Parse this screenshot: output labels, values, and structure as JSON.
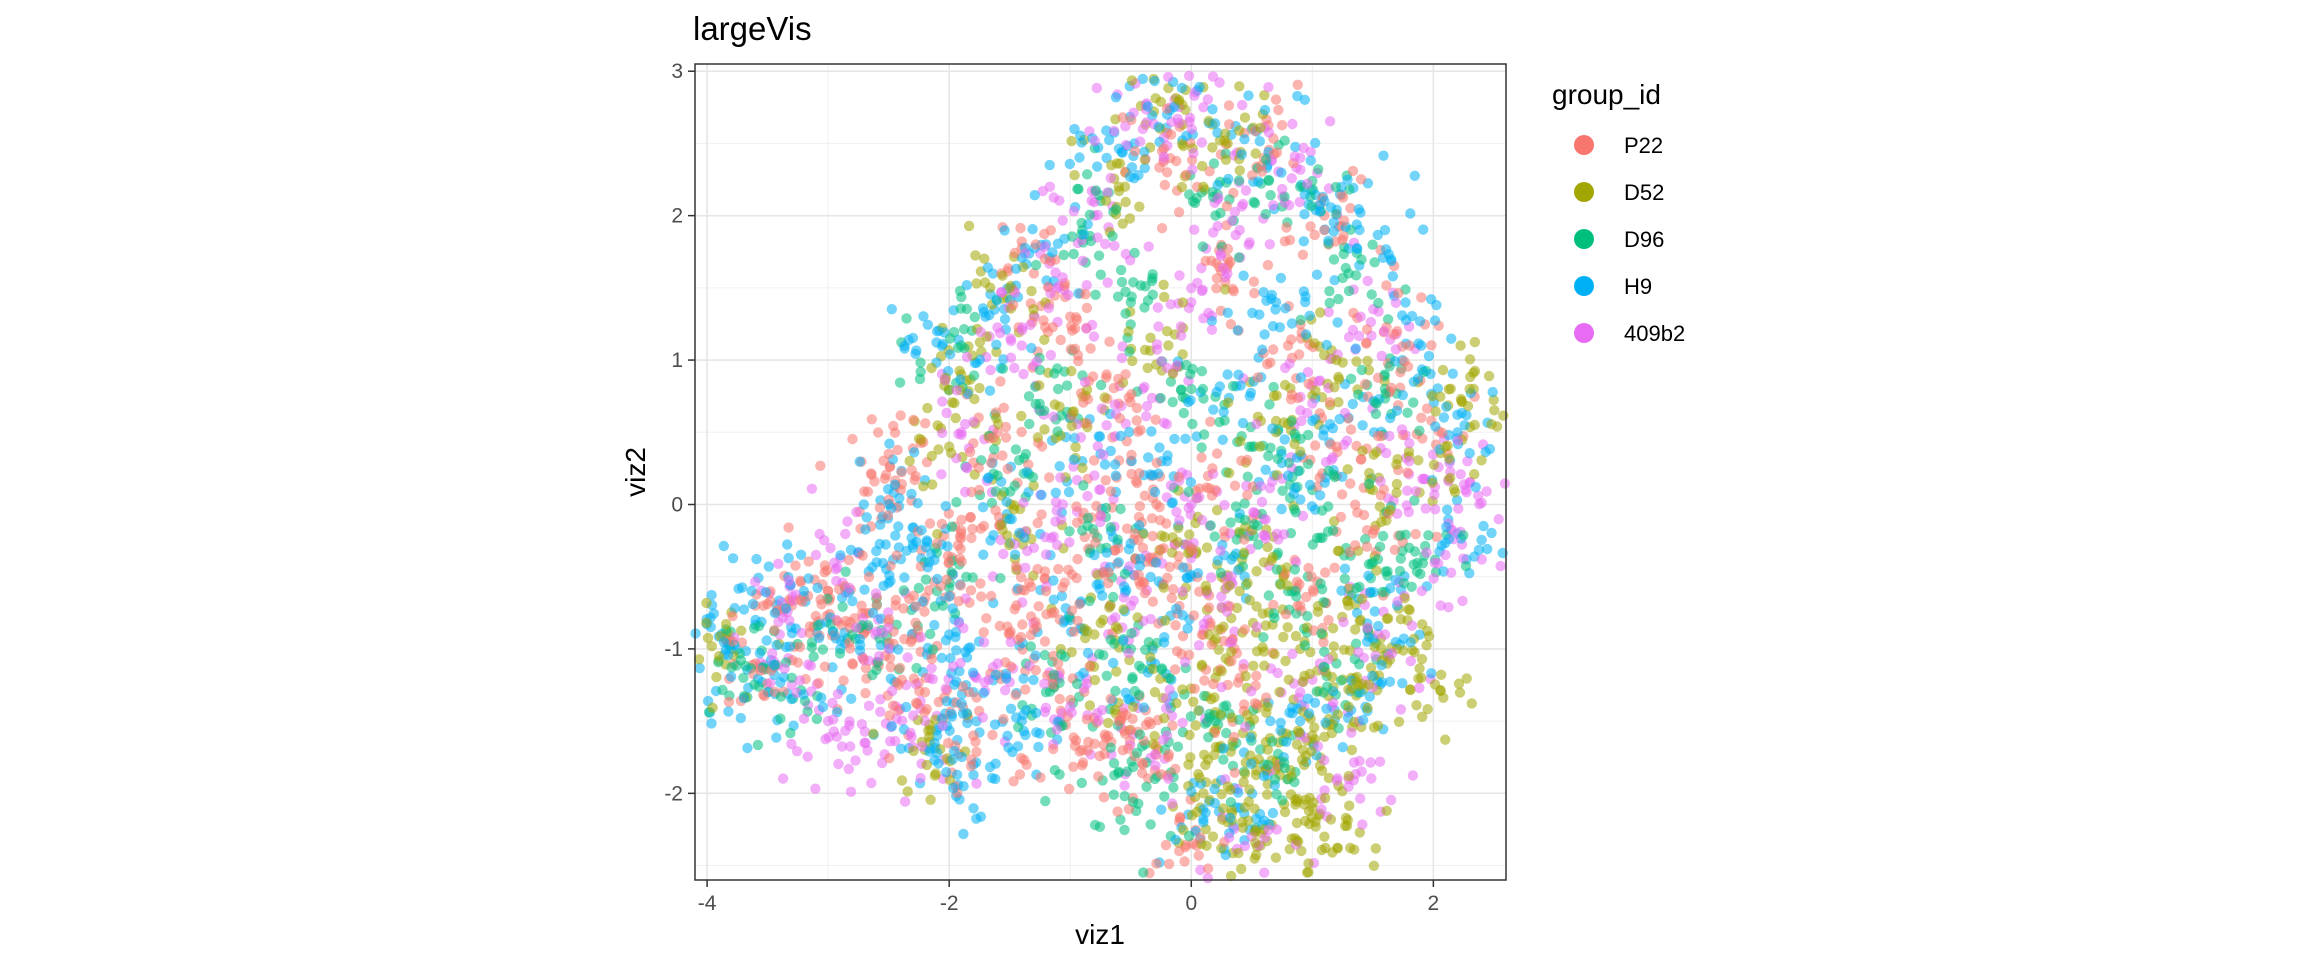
{
  "chart_data": {
    "type": "scatter",
    "title": "largeVis",
    "xlabel": "viz1",
    "ylabel": "viz2",
    "xlim": [
      -4.1,
      2.6
    ],
    "ylim": [
      -2.6,
      3.05
    ],
    "x_ticks": [
      -4,
      -2,
      0,
      2
    ],
    "y_ticks": [
      -2,
      -1,
      0,
      1,
      2,
      3
    ],
    "x_tick_labels": [
      "-4",
      "-2",
      "0",
      "2"
    ],
    "y_tick_labels": [
      "-2",
      "-1",
      "0",
      "1",
      "2",
      "3"
    ],
    "grid": true,
    "point_alpha": 0.55,
    "legend": {
      "title": "group_id",
      "position": "right",
      "entries": [
        {
          "label": "P22",
          "color": "#F8766D"
        },
        {
          "label": "D52",
          "color": "#A3A500"
        },
        {
          "label": "D96",
          "color": "#00BF7D"
        },
        {
          "label": "H9",
          "color": "#00B0F6"
        },
        {
          "label": "409b2",
          "color": "#E76BF3"
        }
      ]
    },
    "series": [
      {
        "name": "P22",
        "color": "#F8766D",
        "points": [
          [
            -0.5,
            0.3
          ],
          [
            -0.3,
            -0.4
          ],
          [
            -0.8,
            -0.2
          ],
          [
            -1.2,
            -0.6
          ],
          [
            -1.5,
            -0.9
          ],
          [
            -2.0,
            -0.4
          ],
          [
            -2.4,
            0.1
          ],
          [
            -2.5,
            0.35
          ],
          [
            -3.0,
            -0.6
          ],
          [
            -3.3,
            -0.7
          ],
          [
            -2.8,
            -1.1
          ],
          [
            -2.2,
            -1.3
          ],
          [
            -1.8,
            -1.6
          ],
          [
            -0.9,
            -1.7
          ],
          [
            -0.6,
            -1.5
          ],
          [
            -0.4,
            -1.8
          ],
          [
            -0.1,
            -2.4
          ],
          [
            -0.7,
            0.9
          ],
          [
            -1.0,
            1.3
          ],
          [
            -0.2,
            2.3
          ],
          [
            0.3,
            1.7
          ],
          [
            0.8,
            1.1
          ],
          [
            1.2,
            0.4
          ],
          [
            1.5,
            -0.2
          ],
          [
            0.9,
            -0.7
          ],
          [
            0.4,
            -1.2
          ],
          [
            0.1,
            -0.9
          ],
          [
            -1.6,
            0.5
          ],
          [
            -1.3,
            1.6
          ],
          [
            0.6,
            2.4
          ],
          [
            1.1,
            2.0
          ],
          [
            1.7,
            1.2
          ],
          [
            1.9,
            0.6
          ],
          [
            -2.6,
            -0.7
          ],
          [
            -3.6,
            -1.1
          ],
          [
            -1.1,
            -1.1
          ],
          [
            -0.4,
            -0.3
          ],
          [
            0.2,
            0.1
          ],
          [
            -2.3,
            -0.9
          ],
          [
            -1.9,
            -0.2
          ]
        ]
      },
      {
        "name": "D52",
        "color": "#A3A500",
        "points": [
          [
            0.2,
            -1.2
          ],
          [
            0.5,
            -1.6
          ],
          [
            0.8,
            -1.9
          ],
          [
            1.0,
            -2.1
          ],
          [
            0.3,
            -2.2
          ],
          [
            0.6,
            -2.25
          ],
          [
            1.1,
            -2.3
          ],
          [
            1.3,
            -1.4
          ],
          [
            0.9,
            -1.0
          ],
          [
            0.4,
            -0.6
          ],
          [
            1.4,
            -0.8
          ],
          [
            1.7,
            -1.0
          ],
          [
            1.9,
            -1.2
          ],
          [
            2.3,
            0.8
          ],
          [
            2.1,
            0.4
          ],
          [
            -0.1,
            2.8
          ],
          [
            0.3,
            2.5
          ],
          [
            -0.6,
            2.2
          ],
          [
            -1.5,
            1.5
          ],
          [
            -1.9,
            0.9
          ],
          [
            -2.0,
            0.4
          ],
          [
            -1.4,
            -0.2
          ],
          [
            -0.8,
            -0.9
          ],
          [
            0.7,
            0.5
          ],
          [
            1.2,
            1.0
          ],
          [
            1.5,
            0.1
          ],
          [
            -0.2,
            1.2
          ],
          [
            0.0,
            -0.3
          ],
          [
            0.6,
            -0.4
          ],
          [
            1.0,
            -1.6
          ],
          [
            -2.2,
            -1.7
          ],
          [
            -3.9,
            -1.05
          ],
          [
            -1.0,
            0.6
          ],
          [
            -0.3,
            -1.3
          ],
          [
            0.1,
            -2.0
          ]
        ]
      },
      {
        "name": "D96",
        "color": "#00BF7D",
        "points": [
          [
            0.4,
            -0.2
          ],
          [
            0.8,
            -0.6
          ],
          [
            1.2,
            -1.1
          ],
          [
            0.6,
            -1.8
          ],
          [
            0.2,
            -1.5
          ],
          [
            1.5,
            -0.4
          ],
          [
            1.6,
            0.8
          ],
          [
            1.3,
            1.6
          ],
          [
            0.9,
            2.2
          ],
          [
            0.2,
            2.0
          ],
          [
            -0.5,
            1.4
          ],
          [
            -1.1,
            0.8
          ],
          [
            -1.6,
            0.2
          ],
          [
            -2.1,
            -0.6
          ],
          [
            -2.8,
            -0.9
          ],
          [
            -3.3,
            -1.2
          ],
          [
            -3.7,
            -1.2
          ],
          [
            -1.2,
            -1.3
          ],
          [
            -0.5,
            -1.0
          ],
          [
            -0.3,
            -1.9
          ],
          [
            -0.6,
            -1.85
          ],
          [
            0.5,
            0.4
          ],
          [
            1.0,
            0.1
          ],
          [
            1.8,
            -0.3
          ],
          [
            -0.9,
            1.9
          ],
          [
            -1.9,
            1.1
          ],
          [
            0.0,
            0.8
          ],
          [
            -0.7,
            -0.3
          ]
        ]
      },
      {
        "name": "H9",
        "color": "#00B0F6",
        "points": [
          [
            -3.8,
            -1.0
          ],
          [
            -3.6,
            -0.8
          ],
          [
            -3.5,
            -1.3
          ],
          [
            -3.2,
            -0.6
          ],
          [
            -2.9,
            -1.0
          ],
          [
            -2.6,
            -0.4
          ],
          [
            -2.5,
            0.0
          ],
          [
            -2.3,
            -0.3
          ],
          [
            -2.0,
            -0.9
          ],
          [
            -1.8,
            -1.3
          ],
          [
            -1.8,
            -1.8
          ],
          [
            -2.1,
            -1.6
          ],
          [
            -1.4,
            -1.5
          ],
          [
            -1.0,
            -0.8
          ],
          [
            -0.6,
            -0.4
          ],
          [
            -0.2,
            0.3
          ],
          [
            0.3,
            0.9
          ],
          [
            0.7,
            1.4
          ],
          [
            1.1,
            2.1
          ],
          [
            0.5,
            2.6
          ],
          [
            -0.2,
            2.7
          ],
          [
            -0.7,
            2.4
          ],
          [
            -1.2,
            1.8
          ],
          [
            -1.7,
            1.3
          ],
          [
            -2.1,
            1.2
          ],
          [
            1.6,
            1.9
          ],
          [
            1.9,
            1.1
          ],
          [
            2.2,
            0.5
          ],
          [
            2.2,
            -0.2
          ],
          [
            1.7,
            -0.7
          ],
          [
            1.4,
            -1.3
          ],
          [
            0.9,
            -1.5
          ],
          [
            0.4,
            -2.1
          ],
          [
            0.1,
            -2.2
          ],
          [
            -0.3,
            -1.1
          ],
          [
            0.0,
            -0.5
          ],
          [
            0.8,
            0.2
          ],
          [
            1.3,
            0.6
          ],
          [
            -0.9,
            0.3
          ],
          [
            -1.5,
            -0.1
          ]
        ]
      },
      {
        "name": "409b2",
        "color": "#E76BF3",
        "points": [
          [
            -3.1,
            -0.35
          ],
          [
            -3.0,
            -1.5
          ],
          [
            -2.7,
            -1.65
          ],
          [
            -2.2,
            -1.5
          ],
          [
            -1.6,
            -1.1
          ],
          [
            -1.3,
            -0.3
          ],
          [
            -0.8,
            0.2
          ],
          [
            -0.4,
            0.8
          ],
          [
            0.0,
            1.4
          ],
          [
            0.4,
            1.9
          ],
          [
            0.9,
            2.4
          ],
          [
            0.1,
            2.75
          ],
          [
            -0.4,
            2.6
          ],
          [
            -0.8,
            2.0
          ],
          [
            -1.4,
            1.1
          ],
          [
            -1.9,
            0.5
          ],
          [
            2.3,
            0.15
          ],
          [
            2.1,
            -0.35
          ],
          [
            1.8,
            0.3
          ],
          [
            1.4,
            1.3
          ],
          [
            1.0,
            0.7
          ],
          [
            0.6,
            -0.1
          ],
          [
            0.3,
            -0.7
          ],
          [
            0.9,
            -1.3
          ],
          [
            1.3,
            -1.9
          ],
          [
            0.5,
            -2.3
          ],
          [
            -0.2,
            -1.6
          ],
          [
            -0.5,
            -0.7
          ],
          [
            -1.0,
            -1.4
          ],
          [
            -2.5,
            -1.0
          ],
          [
            -3.4,
            -0.9
          ],
          [
            0.0,
            0.0
          ],
          [
            1.6,
            -0.9
          ],
          [
            -1.1,
            1.5
          ]
        ]
      }
    ]
  }
}
